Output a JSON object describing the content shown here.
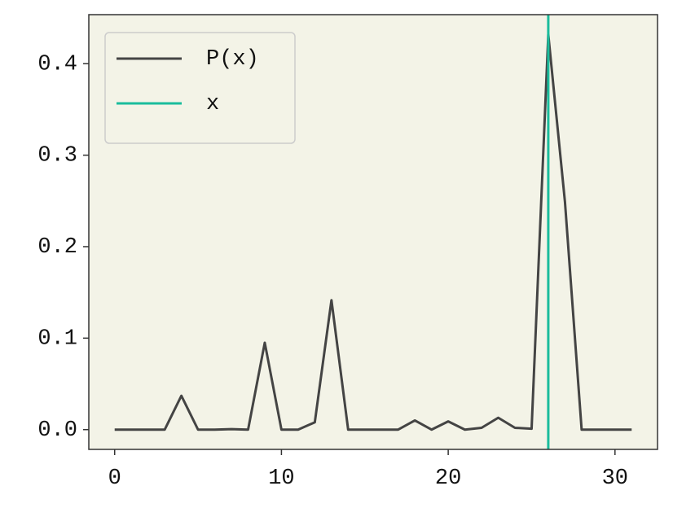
{
  "chart_data": {
    "type": "line",
    "x": [
      0,
      1,
      2,
      3,
      4,
      5,
      6,
      7,
      8,
      9,
      10,
      11,
      12,
      13,
      14,
      15,
      16,
      17,
      18,
      19,
      20,
      21,
      22,
      23,
      24,
      25,
      26,
      27,
      28,
      29,
      30,
      31
    ],
    "series": [
      {
        "name": "P(x)",
        "color": "#444444",
        "values": [
          0,
          0,
          0,
          0,
          0.037,
          0,
          0,
          0.0005,
          0,
          0.095,
          0,
          0,
          0.008,
          0.1415,
          0,
          0,
          0,
          0,
          0.01,
          0,
          0.009,
          0,
          0.002,
          0.013,
          0.002,
          0.001,
          0.432,
          0.249,
          0,
          0,
          0,
          0
        ]
      }
    ],
    "vline": {
      "name": "x",
      "color": "#1abc9c",
      "x": 26
    },
    "xlim": [
      -1.55,
      32.55
    ],
    "xticks": [
      0,
      10,
      20,
      30
    ],
    "ylim": [
      -0.0216,
      0.4536
    ],
    "yticks": [
      {
        "value": 0,
        "label": "0.0"
      },
      {
        "value": 0.1,
        "label": "0.1"
      },
      {
        "value": 0.2,
        "label": "0.2"
      },
      {
        "value": 0.3,
        "label": "0.3"
      },
      {
        "value": 0.4,
        "label": "0.4"
      }
    ],
    "legend": "upper left",
    "background": "#f3f3e7"
  }
}
